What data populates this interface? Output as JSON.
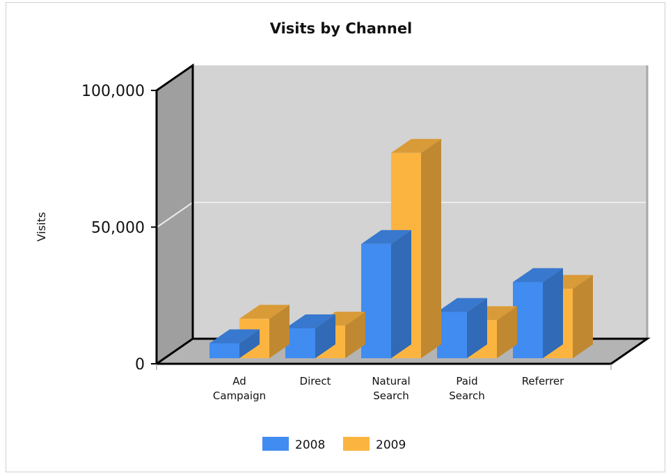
{
  "chart_data": {
    "type": "bar",
    "title": "Visits by Channel",
    "xlabel": "",
    "ylabel": "Visits",
    "ylim": [
      0,
      100000
    ],
    "yticks": [
      "0",
      "50,000",
      "100,000"
    ],
    "ytick_values": [
      0,
      50000,
      100000
    ],
    "categories": [
      [
        "Ad",
        "Campaign"
      ],
      [
        "Direct"
      ],
      [
        "Natural",
        "Search"
      ],
      [
        "Paid",
        "Search"
      ],
      [
        "Referrer"
      ]
    ],
    "series": [
      {
        "name": "2008",
        "color": "#418cf0",
        "values": [
          5500,
          11000,
          42000,
          17000,
          28000
        ]
      },
      {
        "name": "2009",
        "color": "#fcb441",
        "values": [
          14500,
          12000,
          75500,
          14000,
          25500
        ]
      }
    ],
    "legend": "bottom",
    "grid": true
  }
}
